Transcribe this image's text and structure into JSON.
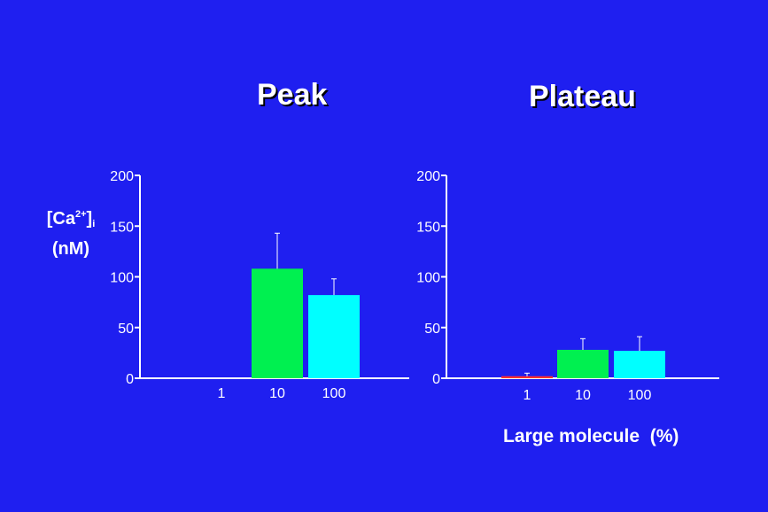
{
  "ylabel": {
    "main": "[Ca",
    "sup": "2+",
    "close": "]",
    "sub": "i",
    "unit": "(nM)"
  },
  "xlabel": "Large molecule  (%)",
  "colors": {
    "background": "#1f1ff0",
    "axis": "#ffffff",
    "bar_1": "#ff3030",
    "bar_10": "#00f050",
    "bar_100": "#00ffff"
  },
  "chart_data": [
    {
      "type": "bar",
      "title": "Peak",
      "categories": [
        "1",
        "10",
        "100"
      ],
      "values": [
        0,
        108,
        82
      ],
      "errors": [
        0,
        35,
        16
      ],
      "yticks": [
        "0",
        "50",
        "100",
        "150",
        "200"
      ],
      "ylim": [
        0,
        200
      ]
    },
    {
      "type": "bar",
      "title": "Plateau",
      "categories": [
        "1",
        "10",
        "100"
      ],
      "values": [
        2,
        28,
        27
      ],
      "errors": [
        3,
        11,
        14
      ],
      "yticks": [
        "0",
        "50",
        "100",
        "150",
        "200"
      ],
      "ylim": [
        0,
        200
      ]
    }
  ]
}
